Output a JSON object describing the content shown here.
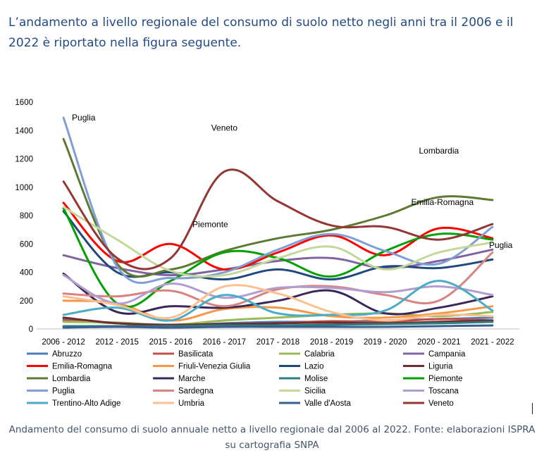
{
  "intro_text": "L’andamento a livello regionale del consumo di suolo netto negli anni tra il 2006 e il 2022 è riportato nella figura seguente.",
  "caption_text": "Andamento del consumo di suolo annuale netto a livello regionale dal 2006 al 2022. Fonte: elaborazioni ISPRA su cartografia SNPA",
  "chart_data": {
    "type": "line",
    "title": "",
    "xlabel": "",
    "ylabel": "",
    "ylim": [
      0,
      1600
    ],
    "yticks": [
      0,
      200,
      400,
      600,
      800,
      1000,
      1200,
      1400,
      1600
    ],
    "grid": false,
    "legend_position": "bottom",
    "categories": [
      "2006 - 2012",
      "2012 - 2015",
      "2015 - 2016",
      "2016 - 2017",
      "2017 - 2018",
      "2018 - 2019",
      "2019 - 2020",
      "2020 - 2021",
      "2021 - 2022"
    ],
    "annotations": [
      {
        "text": "Puglia",
        "series": "Puglia",
        "index": 0
      },
      {
        "text": "Veneto",
        "series": "Veneto",
        "index": 3
      },
      {
        "text": "Piemonte",
        "series": "Piemonte",
        "index": 3
      },
      {
        "text": "Lombardia",
        "series": "Lombardia",
        "index": 7
      },
      {
        "text": "Emilia-Romagna",
        "series": "Emilia-Romagna",
        "index": 7
      },
      {
        "text": "Puglia",
        "series": "Puglia",
        "index": 8
      }
    ],
    "series": [
      {
        "name": "Abruzzo",
        "color": "#4a7ebb",
        "values": [
          70,
          40,
          25,
          40,
          50,
          50,
          60,
          70,
          80
        ]
      },
      {
        "name": "Basilicata",
        "color": "#c0504d",
        "values": [
          60,
          40,
          25,
          30,
          40,
          55,
          50,
          70,
          60
        ]
      },
      {
        "name": "Calabria",
        "color": "#9bbb59",
        "values": [
          50,
          45,
          30,
          60,
          80,
          100,
          110,
          90,
          120
        ]
      },
      {
        "name": "Campania",
        "color": "#8064a2",
        "values": [
          520,
          430,
          380,
          420,
          480,
          500,
          430,
          480,
          560
        ]
      },
      {
        "name": "Emilia-Romagna",
        "color": "#ff0000",
        "values": [
          890,
          480,
          600,
          420,
          540,
          660,
          520,
          710,
          640
        ]
      },
      {
        "name": "Friuli-Venezia Giulia",
        "color": "#f79646",
        "values": [
          200,
          180,
          60,
          140,
          150,
          90,
          80,
          110,
          160
        ]
      },
      {
        "name": "Lazio",
        "color": "#1f497d",
        "values": [
          830,
          400,
          400,
          350,
          420,
          350,
          440,
          430,
          490
        ]
      },
      {
        "name": "Liguria",
        "color": "#6e2d2d",
        "values": [
          80,
          40,
          30,
          35,
          40,
          45,
          40,
          50,
          60
        ]
      },
      {
        "name": "Lombardia",
        "color": "#5e7a32",
        "values": [
          1340,
          460,
          420,
          550,
          640,
          700,
          800,
          930,
          910
        ]
      },
      {
        "name": "Marche",
        "color": "#3b2659",
        "values": [
          390,
          120,
          160,
          150,
          200,
          270,
          110,
          150,
          230
        ]
      },
      {
        "name": "Molise",
        "color": "#2f7d7d",
        "values": [
          20,
          20,
          20,
          25,
          25,
          30,
          35,
          40,
          50
        ]
      },
      {
        "name": "Piemonte",
        "color": "#00a000",
        "values": [
          850,
          180,
          340,
          540,
          500,
          370,
          550,
          670,
          630
        ]
      },
      {
        "name": "Puglia",
        "color": "#7f9fd4",
        "values": [
          1490,
          440,
          360,
          400,
          560,
          670,
          550,
          460,
          720
        ]
      },
      {
        "name": "Sardegna",
        "color": "#d7837f",
        "values": [
          250,
          230,
          270,
          160,
          280,
          300,
          240,
          200,
          540
        ]
      },
      {
        "name": "Sicilia",
        "color": "#c4d89a",
        "values": [
          860,
          630,
          410,
          380,
          500,
          580,
          420,
          540,
          610
        ]
      },
      {
        "name": "Toscana",
        "color": "#b39cd0",
        "values": [
          380,
          180,
          320,
          220,
          290,
          290,
          260,
          300,
          240
        ]
      },
      {
        "name": "Trentino-Alto Adige",
        "color": "#4bacc6",
        "values": [
          100,
          150,
          60,
          240,
          110,
          100,
          130,
          340,
          130
        ]
      },
      {
        "name": "Umbria",
        "color": "#fac090",
        "values": [
          230,
          170,
          80,
          300,
          250,
          120,
          60,
          100,
          90
        ]
      },
      {
        "name": "Valle d'Aosta",
        "color": "#375f92",
        "values": [
          10,
          15,
          10,
          15,
          15,
          15,
          15,
          20,
          25
        ]
      },
      {
        "name": "Veneto",
        "color": "#943634",
        "values": [
          1040,
          500,
          500,
          1110,
          900,
          730,
          720,
          630,
          740
        ]
      }
    ]
  }
}
